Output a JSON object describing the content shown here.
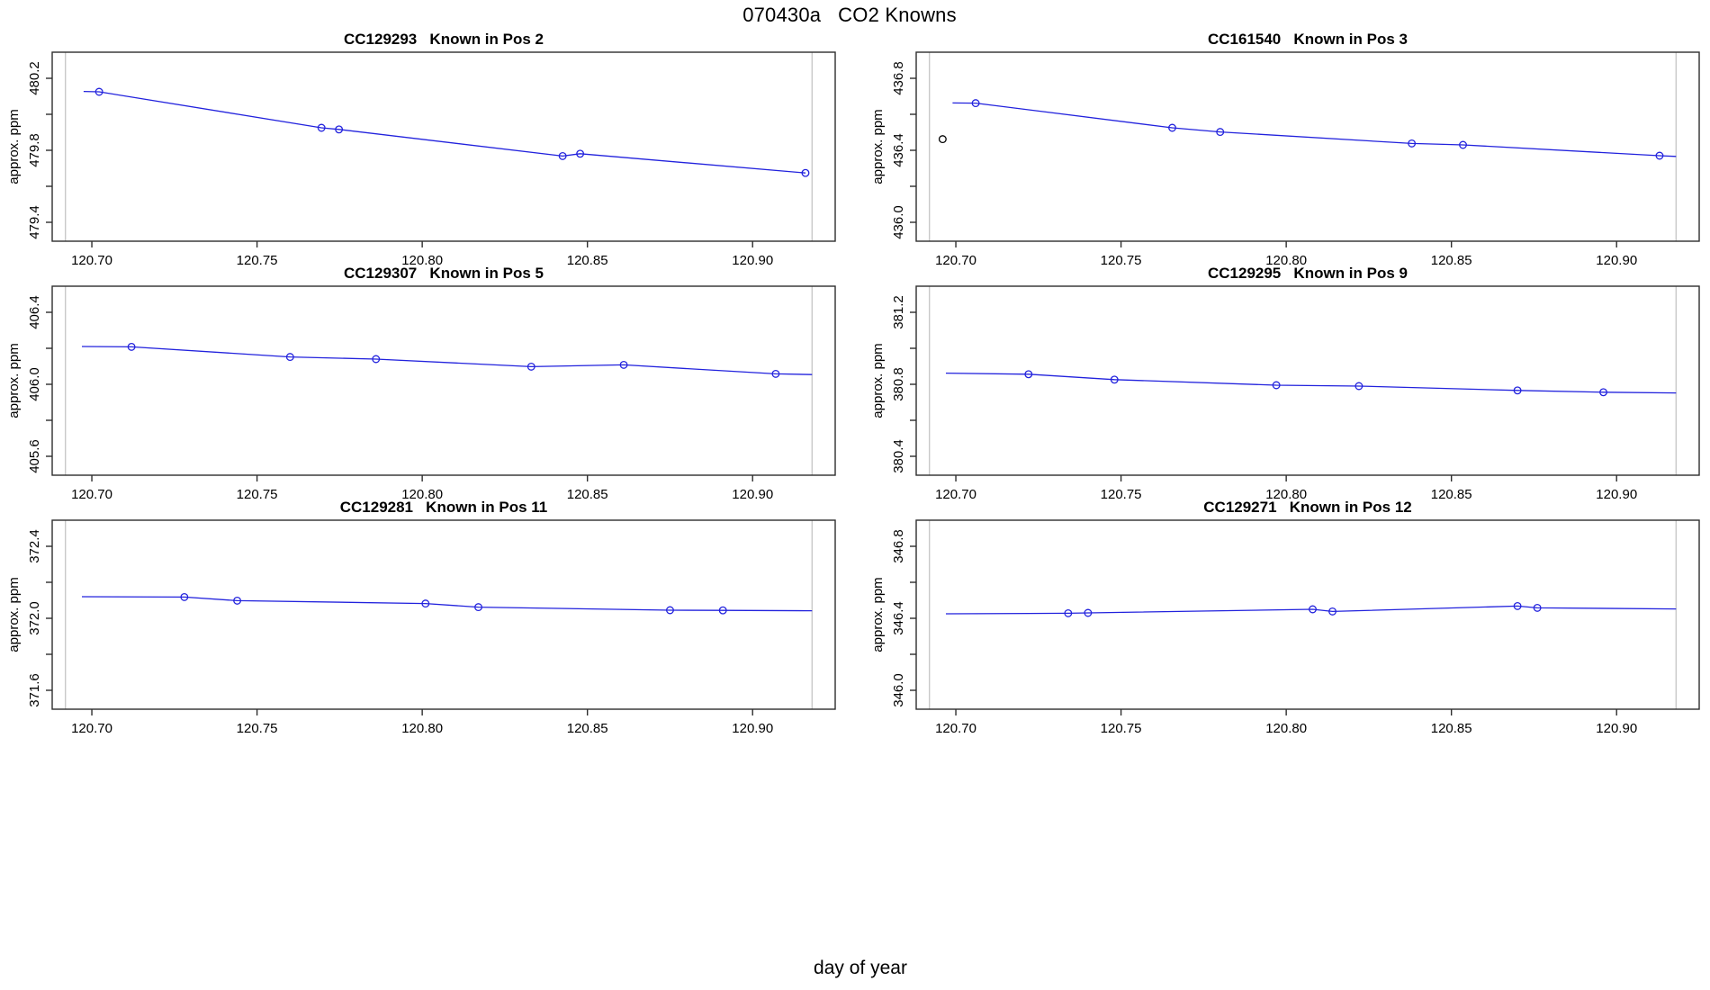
{
  "main_title": "070430a   CO2 Knowns",
  "global_xlabel": "day of year",
  "colors": {
    "series": "#2222dd",
    "outlier": "#000000",
    "vline": "#c9c9c9",
    "box": "#2e2e2e",
    "tick": "#2e2e2e",
    "background": "#ffffff",
    "text": "#000000"
  },
  "axis": {
    "ylabel": "approx. ppm",
    "x_tick_labels": [
      "120.70",
      "120.75",
      "120.80",
      "120.85",
      "120.90"
    ],
    "x_tick_values": [
      120.7,
      120.75,
      120.8,
      120.85,
      120.9
    ],
    "xlim": [
      120.688,
      120.925
    ],
    "vlines": [
      120.692,
      120.918
    ]
  },
  "chart_data": [
    {
      "type": "line",
      "title": "CC129293   Known in Pos 2",
      "sample_id": "CC129293",
      "position_label": "Known in Pos 2",
      "ylabel": "approx. ppm",
      "y_tick_labels": [
        "479.4",
        "479.8",
        "480.2"
      ],
      "y_tick_values": [
        479.4,
        479.8,
        480.2
      ],
      "y_minor_ticks": [
        479.6,
        480.0
      ],
      "ylim": [
        479.295,
        480.345
      ],
      "x": [
        120.7022,
        120.7695,
        120.7748,
        120.8425,
        120.8478,
        120.916
      ],
      "y": [
        480.125,
        479.925,
        479.916,
        479.768,
        479.781,
        479.674
      ],
      "line_x": [
        120.6975,
        120.7022,
        120.7695,
        120.7748,
        120.8425,
        120.8478,
        120.916
      ],
      "line_y": [
        480.127,
        480.125,
        479.925,
        479.916,
        479.768,
        479.781,
        479.674
      ]
    },
    {
      "type": "line",
      "title": "CC161540   Known in Pos 3",
      "sample_id": "CC161540",
      "position_label": "Known in Pos 3",
      "ylabel": "approx. ppm",
      "y_tick_labels": [
        "436.0",
        "436.4",
        "436.8"
      ],
      "y_tick_values": [
        436.0,
        436.4,
        436.8
      ],
      "y_minor_ticks": [
        436.2,
        436.6
      ],
      "ylim": [
        435.895,
        436.945
      ],
      "outlier": {
        "x": 120.696,
        "y": 436.462
      },
      "x": [
        120.706,
        120.7655,
        120.78,
        120.838,
        120.8535,
        120.913
      ],
      "y": [
        436.662,
        436.525,
        436.502,
        436.438,
        436.43,
        436.37
      ],
      "line_x": [
        120.699,
        120.706,
        120.7655,
        120.78,
        120.838,
        120.8535,
        120.913,
        120.918
      ],
      "line_y": [
        436.663,
        436.662,
        436.525,
        436.502,
        436.438,
        436.43,
        436.37,
        436.366
      ]
    },
    {
      "type": "line",
      "title": "CC129307   Known in Pos 5",
      "sample_id": "CC129307",
      "position_label": "Known in Pos 5",
      "ylabel": "approx. ppm",
      "y_tick_labels": [
        "405.6",
        "406.0",
        "406.4"
      ],
      "y_tick_values": [
        405.6,
        406.0,
        406.4
      ],
      "y_minor_ticks": [
        405.8,
        406.2
      ],
      "ylim": [
        405.495,
        406.545
      ],
      "x": [
        120.712,
        120.76,
        120.786,
        120.833,
        120.861,
        120.907
      ],
      "y": [
        406.208,
        406.152,
        406.14,
        406.098,
        406.108,
        406.058
      ],
      "line_x": [
        120.697,
        120.712,
        120.76,
        120.786,
        120.833,
        120.861,
        120.907,
        120.918
      ],
      "line_y": [
        406.21,
        406.208,
        406.152,
        406.14,
        406.098,
        406.108,
        406.058,
        406.054
      ]
    },
    {
      "type": "line",
      "title": "CC129295   Known in Pos 9",
      "sample_id": "CC129295",
      "position_label": "Known in Pos 9",
      "ylabel": "approx. ppm",
      "y_tick_labels": [
        "380.4",
        "380.8",
        "381.2"
      ],
      "y_tick_values": [
        380.4,
        380.8,
        381.2
      ],
      "y_minor_ticks": [
        380.6,
        381.0
      ],
      "ylim": [
        380.295,
        381.345
      ],
      "x": [
        120.722,
        120.748,
        120.797,
        120.822,
        120.87,
        120.896
      ],
      "y": [
        380.856,
        380.826,
        380.795,
        380.79,
        380.766,
        380.756
      ],
      "line_x": [
        120.697,
        120.722,
        120.748,
        120.797,
        120.822,
        120.87,
        120.896,
        120.918
      ],
      "line_y": [
        380.862,
        380.856,
        380.826,
        380.795,
        380.79,
        380.766,
        380.756,
        380.752
      ]
    },
    {
      "type": "line",
      "title": "CC129281   Known in Pos 11",
      "sample_id": "CC129281",
      "position_label": "Known in Pos 11",
      "ylabel": "approx. ppm",
      "y_tick_labels": [
        "371.6",
        "372.0",
        "372.4"
      ],
      "y_tick_values": [
        371.6,
        372.0,
        372.4
      ],
      "y_minor_ticks": [
        371.8,
        372.2
      ],
      "ylim": [
        371.495,
        372.545
      ],
      "x": [
        120.728,
        120.744,
        120.801,
        120.817,
        120.875,
        120.891
      ],
      "y": [
        372.118,
        372.098,
        372.082,
        372.062,
        372.045,
        372.044
      ],
      "line_x": [
        120.697,
        120.728,
        120.744,
        120.801,
        120.817,
        120.875,
        120.891,
        120.918
      ],
      "line_y": [
        372.12,
        372.118,
        372.098,
        372.082,
        372.062,
        372.045,
        372.044,
        372.042
      ]
    },
    {
      "type": "line",
      "title": "CC129271   Known in Pos 12",
      "sample_id": "CC129271",
      "position_label": "Known in Pos 12",
      "ylabel": "approx. ppm",
      "y_tick_labels": [
        "346.0",
        "346.4",
        "346.8"
      ],
      "y_tick_values": [
        346.0,
        346.4,
        346.8
      ],
      "y_minor_ticks": [
        346.2,
        346.6
      ],
      "ylim": [
        345.895,
        346.945
      ],
      "x": [
        120.734,
        120.74,
        120.808,
        120.814,
        120.87,
        120.876
      ],
      "y": [
        346.428,
        346.43,
        346.45,
        346.438,
        346.468,
        346.458
      ],
      "line_x": [
        120.697,
        120.734,
        120.74,
        120.808,
        120.814,
        120.87,
        120.876,
        120.918
      ],
      "line_y": [
        346.425,
        346.428,
        346.43,
        346.45,
        346.438,
        346.468,
        346.458,
        346.452
      ]
    }
  ]
}
